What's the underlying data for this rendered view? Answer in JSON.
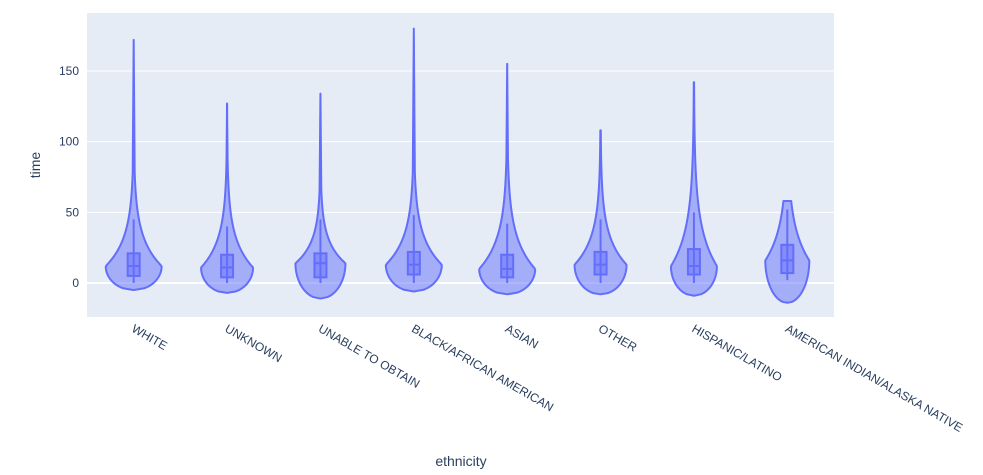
{
  "chart_data": {
    "type": "violin",
    "xlabel": "ethnicity",
    "ylabel": "time",
    "ylim": [
      -25,
      190
    ],
    "yticks": [
      0,
      50,
      100,
      150
    ],
    "grid": true,
    "color": "#636efa",
    "categories": [
      "WHITE",
      "UNKNOWN",
      "UNABLE TO OBTAIN",
      "BLACK/AFRICAN AMERICAN",
      "ASIAN",
      "OTHER",
      "HISPANIC/LATINO",
      "AMERICAN INDIAN/ALASKA NATIVE"
    ],
    "violins": [
      {
        "category": "WHITE",
        "min": -5,
        "max": 172,
        "q1": 5,
        "median": 12,
        "q3": 21,
        "lower_fence": 0,
        "upper_fence": 45,
        "max_half_width": 28
      },
      {
        "category": "UNKNOWN",
        "min": -7,
        "max": 127,
        "q1": 4,
        "median": 11,
        "q3": 20,
        "lower_fence": 0,
        "upper_fence": 40,
        "max_half_width": 26
      },
      {
        "category": "UNABLE TO OBTAIN",
        "min": -11,
        "max": 134,
        "q1": 4,
        "median": 14,
        "q3": 21,
        "lower_fence": 0,
        "upper_fence": 45,
        "max_half_width": 25
      },
      {
        "category": "BLACK/AFRICAN AMERICAN",
        "min": -6,
        "max": 180,
        "q1": 6,
        "median": 13,
        "q3": 22,
        "lower_fence": 0,
        "upper_fence": 48,
        "max_half_width": 28
      },
      {
        "category": "ASIAN",
        "min": -8,
        "max": 155,
        "q1": 4,
        "median": 10,
        "q3": 20,
        "lower_fence": 0,
        "upper_fence": 42,
        "max_half_width": 28
      },
      {
        "category": "OTHER",
        "min": -8,
        "max": 108,
        "q1": 6,
        "median": 13,
        "q3": 22,
        "lower_fence": 0,
        "upper_fence": 45,
        "max_half_width": 26
      },
      {
        "category": "HISPANIC/LATINO",
        "min": -9,
        "max": 142,
        "q1": 6,
        "median": 12,
        "q3": 24,
        "lower_fence": 0,
        "upper_fence": 50,
        "max_half_width": 23
      },
      {
        "category": "AMERICAN INDIAN/ALASKA NATIVE",
        "min": -14,
        "max": 58,
        "q1": 7,
        "median": 16,
        "q3": 27,
        "lower_fence": 2,
        "upper_fence": 52,
        "max_half_width": 22
      }
    ]
  }
}
